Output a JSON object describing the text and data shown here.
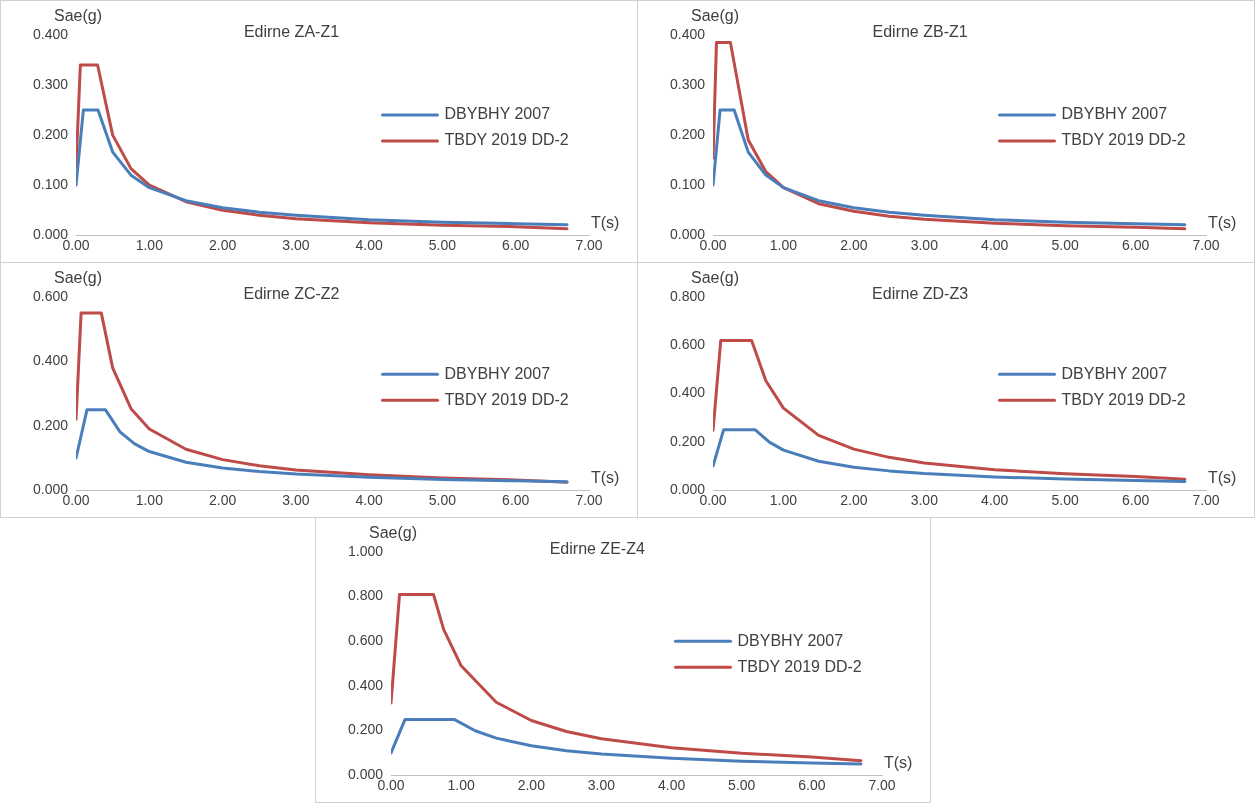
{
  "chart_data": [
    {
      "type": "line",
      "title": "Edirne ZA-Z1",
      "xlabel": "T(s)",
      "ylabel": "Sae(g)",
      "legend": "right",
      "grid": false,
      "marker": "none",
      "line_style": "solid",
      "xlim": [
        0,
        7
      ],
      "ylim": [
        0,
        0.4
      ],
      "xticks": [
        {
          "value": 0,
          "label": "0.00"
        },
        {
          "value": 1,
          "label": "1.00"
        },
        {
          "value": 2,
          "label": "2.00"
        },
        {
          "value": 3,
          "label": "3.00"
        },
        {
          "value": 4,
          "label": "4.00"
        },
        {
          "value": 5,
          "label": "5.00"
        },
        {
          "value": 6,
          "label": "6.00"
        },
        {
          "value": 7,
          "label": "7.00"
        }
      ],
      "yticks": [
        {
          "value": 0,
          "label": "0.000"
        },
        {
          "value": 0.1,
          "label": "0.100"
        },
        {
          "value": 0.2,
          "label": "0.200"
        },
        {
          "value": 0.3,
          "label": "0.300"
        },
        {
          "value": 0.4,
          "label": "0.400"
        }
      ],
      "series": [
        {
          "name": "DBYBHY 2007",
          "color": "#4a7ebb",
          "x": [
            0,
            0.1,
            0.3,
            0.5,
            0.75,
            1,
            1.5,
            2,
            2.5,
            3,
            4,
            5,
            6,
            6.7
          ],
          "values": [
            0.1,
            0.25,
            0.25,
            0.166,
            0.12,
            0.095,
            0.069,
            0.055,
            0.046,
            0.04,
            0.031,
            0.026,
            0.023,
            0.021
          ]
        },
        {
          "name": "TBDY 2019 DD-2",
          "color": "#be4b48",
          "x": [
            0,
            0.059,
            0.294,
            0.5,
            0.75,
            1,
            1.5,
            2,
            2.5,
            3,
            4,
            5,
            6,
            6.7
          ],
          "values": [
            0.136,
            0.34,
            0.34,
            0.2,
            0.133,
            0.1,
            0.067,
            0.05,
            0.04,
            0.033,
            0.025,
            0.02,
            0.017,
            0.013
          ]
        }
      ]
    },
    {
      "type": "line",
      "title": "Edirne ZB-Z1",
      "xlabel": "T(s)",
      "ylabel": "Sae(g)",
      "legend": "right",
      "grid": false,
      "marker": "none",
      "line_style": "solid",
      "xlim": [
        0,
        7
      ],
      "ylim": [
        0,
        0.4
      ],
      "xticks": [
        {
          "value": 0,
          "label": "0.00"
        },
        {
          "value": 1,
          "label": "1.00"
        },
        {
          "value": 2,
          "label": "2.00"
        },
        {
          "value": 3,
          "label": "3.00"
        },
        {
          "value": 4,
          "label": "4.00"
        },
        {
          "value": 5,
          "label": "5.00"
        },
        {
          "value": 6,
          "label": "6.00"
        },
        {
          "value": 7,
          "label": "7.00"
        }
      ],
      "yticks": [
        {
          "value": 0,
          "label": "0.000"
        },
        {
          "value": 0.1,
          "label": "0.100"
        },
        {
          "value": 0.2,
          "label": "0.200"
        },
        {
          "value": 0.3,
          "label": "0.300"
        },
        {
          "value": 0.4,
          "label": "0.400"
        }
      ],
      "series": [
        {
          "name": "DBYBHY 2007",
          "color": "#4a7ebb",
          "x": [
            0,
            0.1,
            0.3,
            0.5,
            0.75,
            1,
            1.5,
            2,
            2.5,
            3,
            4,
            5,
            6,
            6.7
          ],
          "values": [
            0.1,
            0.25,
            0.25,
            0.166,
            0.12,
            0.095,
            0.069,
            0.055,
            0.046,
            0.04,
            0.031,
            0.026,
            0.023,
            0.021
          ]
        },
        {
          "name": "TBDY 2019 DD-2",
          "color": "#be4b48",
          "x": [
            0,
            0.049,
            0.247,
            0.5,
            0.75,
            1,
            1.5,
            2,
            2.5,
            3,
            4,
            5,
            6,
            6.7
          ],
          "values": [
            0.154,
            0.385,
            0.385,
            0.19,
            0.127,
            0.095,
            0.063,
            0.048,
            0.038,
            0.032,
            0.024,
            0.019,
            0.016,
            0.013
          ]
        }
      ]
    },
    {
      "type": "line",
      "title": "Edirne ZC-Z2",
      "xlabel": "T(s)",
      "ylabel": "Sae(g)",
      "legend": "right",
      "grid": false,
      "marker": "none",
      "line_style": "solid",
      "xlim": [
        0,
        7
      ],
      "ylim": [
        0,
        0.6
      ],
      "xticks": [
        {
          "value": 0,
          "label": "0.00"
        },
        {
          "value": 1,
          "label": "1.00"
        },
        {
          "value": 2,
          "label": "2.00"
        },
        {
          "value": 3,
          "label": "3.00"
        },
        {
          "value": 4,
          "label": "4.00"
        },
        {
          "value": 5,
          "label": "5.00"
        },
        {
          "value": 6,
          "label": "6.00"
        },
        {
          "value": 7,
          "label": "7.00"
        }
      ],
      "yticks": [
        {
          "value": 0,
          "label": "0.000"
        },
        {
          "value": 0.2,
          "label": "0.200"
        },
        {
          "value": 0.4,
          "label": "0.400"
        },
        {
          "value": 0.6,
          "label": "0.600"
        }
      ],
      "series": [
        {
          "name": "DBYBHY 2007",
          "color": "#4a7ebb",
          "x": [
            0,
            0.15,
            0.4,
            0.6,
            0.8,
            1,
            1.5,
            2,
            2.5,
            3,
            4,
            5,
            6,
            6.7
          ],
          "values": [
            0.1,
            0.25,
            0.25,
            0.181,
            0.144,
            0.12,
            0.087,
            0.069,
            0.058,
            0.05,
            0.04,
            0.033,
            0.029,
            0.026
          ]
        },
        {
          "name": "TBDY 2019 DD-2",
          "color": "#be4b48",
          "x": [
            0,
            0.069,
            0.345,
            0.5,
            0.75,
            1,
            1.5,
            2,
            2.5,
            3,
            4,
            5,
            6,
            6.7
          ],
          "values": [
            0.22,
            0.55,
            0.55,
            0.38,
            0.253,
            0.19,
            0.127,
            0.095,
            0.076,
            0.063,
            0.048,
            0.038,
            0.032,
            0.025
          ]
        }
      ]
    },
    {
      "type": "line",
      "title": "Edirne ZD-Z3",
      "xlabel": "T(s)",
      "ylabel": "Sae(g)",
      "legend": "right",
      "grid": false,
      "marker": "none",
      "line_style": "solid",
      "xlim": [
        0,
        7
      ],
      "ylim": [
        0,
        0.8
      ],
      "xticks": [
        {
          "value": 0,
          "label": "0.00"
        },
        {
          "value": 1,
          "label": "1.00"
        },
        {
          "value": 2,
          "label": "2.00"
        },
        {
          "value": 3,
          "label": "3.00"
        },
        {
          "value": 4,
          "label": "4.00"
        },
        {
          "value": 5,
          "label": "5.00"
        },
        {
          "value": 6,
          "label": "6.00"
        },
        {
          "value": 7,
          "label": "7.00"
        }
      ],
      "yticks": [
        {
          "value": 0,
          "label": "0.000"
        },
        {
          "value": 0.2,
          "label": "0.200"
        },
        {
          "value": 0.4,
          "label": "0.400"
        },
        {
          "value": 0.6,
          "label": "0.600"
        },
        {
          "value": 0.8,
          "label": "0.800"
        }
      ],
      "series": [
        {
          "name": "DBYBHY 2007",
          "color": "#4a7ebb",
          "x": [
            0,
            0.15,
            0.6,
            0.8,
            1,
            1.5,
            2,
            2.5,
            3,
            4,
            5,
            6,
            6.7
          ],
          "values": [
            0.1,
            0.25,
            0.25,
            0.199,
            0.166,
            0.12,
            0.095,
            0.08,
            0.069,
            0.055,
            0.046,
            0.04,
            0.036
          ]
        },
        {
          "name": "TBDY 2019 DD-2",
          "color": "#be4b48",
          "x": [
            0,
            0.11,
            0.548,
            0.75,
            1,
            1.5,
            2,
            2.5,
            3,
            4,
            5,
            6,
            6.7
          ],
          "values": [
            0.248,
            0.62,
            0.62,
            0.453,
            0.34,
            0.227,
            0.17,
            0.136,
            0.113,
            0.085,
            0.068,
            0.057,
            0.045
          ]
        }
      ]
    },
    {
      "type": "line",
      "title": "Edirne ZE-Z4",
      "xlabel": "T(s)",
      "ylabel": "Sae(g)",
      "legend": "right",
      "grid": false,
      "marker": "none",
      "line_style": "solid",
      "xlim": [
        0,
        7
      ],
      "ylim": [
        0,
        1
      ],
      "xticks": [
        {
          "value": 0,
          "label": "0.00"
        },
        {
          "value": 1,
          "label": "1.00"
        },
        {
          "value": 2,
          "label": "2.00"
        },
        {
          "value": 3,
          "label": "3.00"
        },
        {
          "value": 4,
          "label": "4.00"
        },
        {
          "value": 5,
          "label": "5.00"
        },
        {
          "value": 6,
          "label": "6.00"
        },
        {
          "value": 7,
          "label": "7.00"
        }
      ],
      "yticks": [
        {
          "value": 0,
          "label": "0.000"
        },
        {
          "value": 0.2,
          "label": "0.200"
        },
        {
          "value": 0.4,
          "label": "0.400"
        },
        {
          "value": 0.6,
          "label": "0.600"
        },
        {
          "value": 0.8,
          "label": "0.800"
        },
        {
          "value": 1,
          "label": "1.000"
        }
      ],
      "series": [
        {
          "name": "DBYBHY 2007",
          "color": "#4a7ebb",
          "x": [
            0,
            0.2,
            0.9,
            1.2,
            1.5,
            2,
            2.5,
            3,
            4,
            5,
            6,
            6.7
          ],
          "values": [
            0.1,
            0.25,
            0.25,
            0.199,
            0.166,
            0.132,
            0.11,
            0.095,
            0.076,
            0.063,
            0.055,
            0.05
          ]
        },
        {
          "name": "TBDY 2019 DD-2",
          "color": "#be4b48",
          "x": [
            0,
            0.121,
            0.605,
            0.75,
            1,
            1.5,
            2,
            2.5,
            3,
            4,
            5,
            6,
            6.7
          ],
          "values": [
            0.324,
            0.81,
            0.81,
            0.653,
            0.49,
            0.327,
            0.245,
            0.196,
            0.163,
            0.123,
            0.098,
            0.082,
            0.065
          ]
        }
      ]
    }
  ]
}
